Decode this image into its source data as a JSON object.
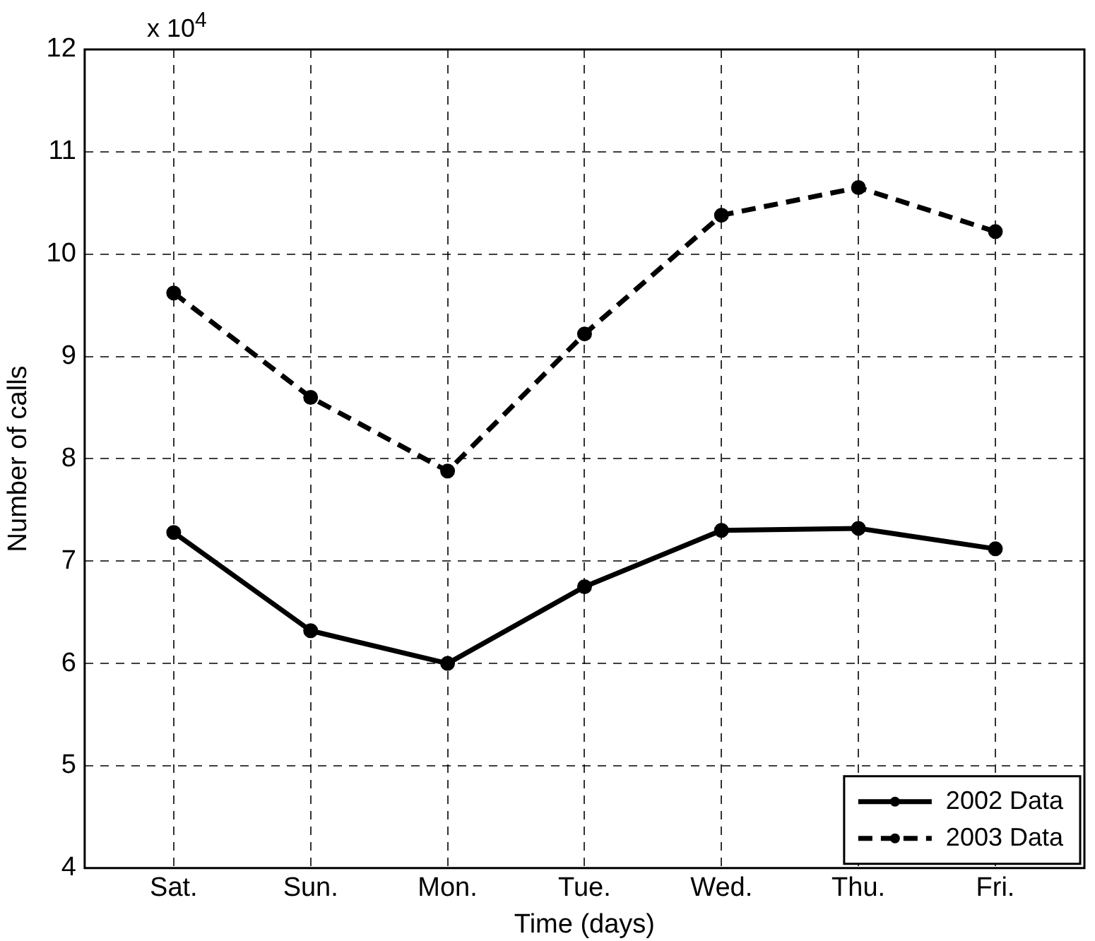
{
  "chart_data": {
    "type": "line",
    "xlabel": "Time (days)",
    "ylabel": "Number of calls",
    "annotations": [
      "x 10$^{4}$"
    ],
    "categories": [
      "Sat.",
      "Sun.",
      "Mon.",
      "Tue.",
      "Wed.",
      "Thu.",
      "Fri."
    ],
    "series": [
      {
        "name": "2002 Data",
        "color": "#000000",
        "line_style": "solid",
        "values": [
          7.28,
          6.32,
          6.0,
          6.75,
          7.3,
          7.32,
          7.12
        ]
      },
      {
        "name": "2003 Data",
        "color": "#000000",
        "line_style": "dashed",
        "values": [
          9.62,
          8.6,
          7.88,
          9.22,
          10.38,
          10.65,
          10.22
        ]
      }
    ],
    "ylim": [
      4,
      12
    ],
    "yticks": [
      4,
      5,
      6,
      7,
      8,
      9,
      10,
      11,
      12
    ],
    "grid": true,
    "legend": "bottom right",
    "marker": "circle"
  }
}
